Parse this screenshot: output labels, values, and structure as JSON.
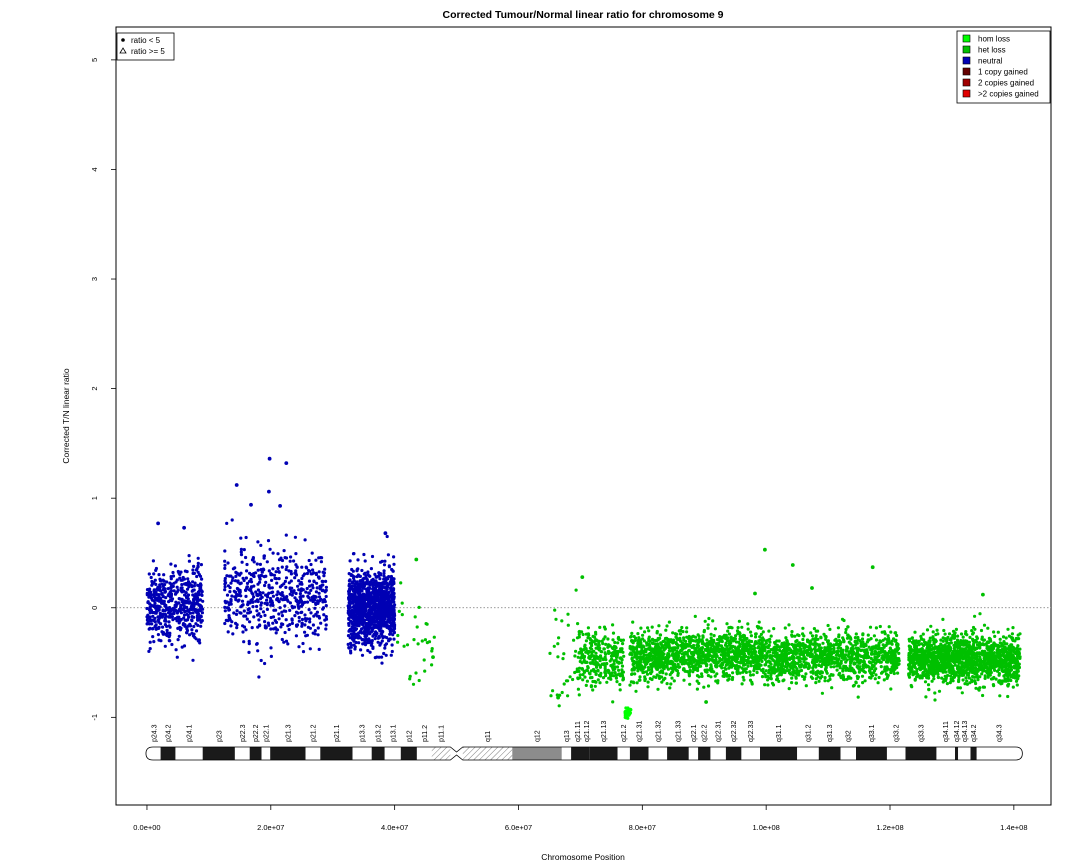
{
  "chart_data": {
    "type": "scatter",
    "title": "Corrected Tumour/Normal linear ratio for chromosome  9",
    "xlabel": "Chromosome Position",
    "ylabel": "Corrected T/N linear ratio",
    "xlim": [
      -5000000,
      146000000
    ],
    "ylim": [
      -1.8,
      5.3
    ],
    "x_ticks": [
      0,
      20000000,
      40000000,
      60000000,
      80000000,
      100000000,
      120000000,
      140000000
    ],
    "x_tick_labels": [
      "0.0e+00",
      "2.0e+07",
      "4.0e+07",
      "6.0e+07",
      "8.0e+07",
      "1.0e+08",
      "1.2e+08",
      "1.4e+08"
    ],
    "y_ticks": [
      -1,
      0,
      1,
      2,
      3,
      4,
      5
    ],
    "y_tick_labels": [
      "-1",
      "0",
      "1",
      "2",
      "3",
      "4",
      "5"
    ],
    "reference_line": 0,
    "shape_legend": {
      "position": "top-left",
      "entries": [
        {
          "symbol": "dot",
          "label": "ratio < 5"
        },
        {
          "symbol": "triangle",
          "label": "ratio >= 5"
        }
      ]
    },
    "state_legend": {
      "position": "top-right",
      "entries": [
        {
          "label": "hom loss",
          "color": "#00ff00"
        },
        {
          "label": "het loss",
          "color": "#00c000"
        },
        {
          "label": "neutral",
          "color": "#0000b4"
        },
        {
          "label": "1 copy gained",
          "color": "#640000"
        },
        {
          "label": "2 copies gained",
          "color": "#a00000"
        },
        {
          "label": ">2 copies gained",
          "color": "#e00000"
        }
      ]
    },
    "series": [
      {
        "name": "neutral",
        "color": "#0000b4",
        "segments": [
          {
            "start": 0,
            "end": 9000000,
            "mean": 0.03,
            "sd": 0.17,
            "n": 520
          },
          {
            "start": 12500000,
            "end": 29000000,
            "mean": 0.12,
            "sd": 0.2,
            "n": 560
          },
          {
            "start": 32500000,
            "end": 40000000,
            "mean": 0.0,
            "sd": 0.17,
            "n": 1150
          }
        ]
      },
      {
        "name": "het loss",
        "color": "#00c000",
        "segments": [
          {
            "start": 40000000,
            "end": 46500000,
            "mean": -0.25,
            "sd": 0.2,
            "n": 30
          },
          {
            "start": 65000000,
            "end": 69500000,
            "mean": -0.5,
            "sd": 0.2,
            "n": 30
          },
          {
            "start": 69500000,
            "end": 77000000,
            "mean": -0.46,
            "sd": 0.13,
            "n": 300
          },
          {
            "start": 78000000,
            "end": 100000000,
            "mean": -0.43,
            "sd": 0.11,
            "n": 1300
          },
          {
            "start": 100000000,
            "end": 121500000,
            "mean": -0.45,
            "sd": 0.11,
            "n": 1100
          },
          {
            "start": 123000000,
            "end": 141000000,
            "mean": -0.47,
            "sd": 0.11,
            "n": 1500
          }
        ]
      },
      {
        "name": "hom loss",
        "color": "#00ff00",
        "segments": [
          {
            "start": 77200000,
            "end": 78200000,
            "mean": -0.96,
            "sd": 0.03,
            "n": 40
          }
        ]
      }
    ],
    "outliers": [
      {
        "x": 19800000,
        "y": 1.36,
        "state": "neutral"
      },
      {
        "x": 22500000,
        "y": 1.32,
        "state": "neutral"
      },
      {
        "x": 14500000,
        "y": 1.12,
        "state": "neutral"
      },
      {
        "x": 19700000,
        "y": 1.06,
        "state": "neutral"
      },
      {
        "x": 16800000,
        "y": 0.94,
        "state": "neutral"
      },
      {
        "x": 21500000,
        "y": 0.93,
        "state": "neutral"
      },
      {
        "x": 1800000,
        "y": 0.77,
        "state": "neutral"
      },
      {
        "x": 6000000,
        "y": 0.73,
        "state": "neutral"
      },
      {
        "x": 38500000,
        "y": 0.68,
        "state": "neutral"
      },
      {
        "x": 99800000,
        "y": 0.53,
        "state": "het loss"
      },
      {
        "x": 104300000,
        "y": 0.39,
        "state": "het loss"
      },
      {
        "x": 117200000,
        "y": 0.37,
        "state": "het loss"
      },
      {
        "x": 70300000,
        "y": 0.28,
        "state": "het loss"
      },
      {
        "x": 107400000,
        "y": 0.18,
        "state": "het loss"
      },
      {
        "x": 98200000,
        "y": 0.13,
        "state": "het loss"
      },
      {
        "x": 135000000,
        "y": 0.12,
        "state": "het loss"
      },
      {
        "x": 43500000,
        "y": 0.44,
        "state": "het loss"
      },
      {
        "x": 46200000,
        "y": -0.45,
        "state": "het loss"
      },
      {
        "x": 66400000,
        "y": -0.82,
        "state": "het loss"
      },
      {
        "x": 90300000,
        "y": -0.86,
        "state": "het loss"
      }
    ],
    "cytobands": {
      "p_end": 49000000,
      "q_start": 51000000,
      "chrom_end": 141213431,
      "bands": [
        {
          "label": "p24.3",
          "start": 0,
          "end": 2200000,
          "stain": "white"
        },
        {
          "label": "p24.2",
          "start": 2200000,
          "end": 4600000,
          "stain": "black"
        },
        {
          "label": "p24.1",
          "start": 4600000,
          "end": 9000000,
          "stain": "white"
        },
        {
          "label": "p23",
          "start": 9000000,
          "end": 14200000,
          "stain": "black"
        },
        {
          "label": "p22.3",
          "start": 14200000,
          "end": 16600000,
          "stain": "white"
        },
        {
          "label": "p22.2",
          "start": 16600000,
          "end": 18500000,
          "stain": "black"
        },
        {
          "label": "p22.1",
          "start": 18500000,
          "end": 19900000,
          "stain": "white"
        },
        {
          "label": "p21.3",
          "start": 19900000,
          "end": 25600000,
          "stain": "black"
        },
        {
          "label": "p21.2",
          "start": 25600000,
          "end": 28000000,
          "stain": "white"
        },
        {
          "label": "p21.1",
          "start": 28000000,
          "end": 33200000,
          "stain": "black"
        },
        {
          "label": "p13.3",
          "start": 33200000,
          "end": 36300000,
          "stain": "white"
        },
        {
          "label": "p13.2",
          "start": 36300000,
          "end": 38400000,
          "stain": "black"
        },
        {
          "label": "p13.1",
          "start": 38400000,
          "end": 41000000,
          "stain": "white"
        },
        {
          "label": "p12",
          "start": 41000000,
          "end": 43600000,
          "stain": "black"
        },
        {
          "label": "p11.2",
          "start": 43600000,
          "end": 46000000,
          "stain": "white"
        },
        {
          "label": "p11.1",
          "start": 46000000,
          "end": 49000000,
          "stain": "hatch"
        },
        {
          "label": "q11",
          "start": 51000000,
          "end": 59000000,
          "stain": "hatch"
        },
        {
          "label": "q12",
          "start": 59000000,
          "end": 67000000,
          "stain": "gray"
        },
        {
          "label": "q13",
          "start": 67000000,
          "end": 68500000,
          "stain": "white"
        },
        {
          "label": "q21.11",
          "start": 68500000,
          "end": 70500000,
          "stain": "black"
        },
        {
          "label": "q21.12",
          "start": 70500000,
          "end": 71500000,
          "stain": "black"
        },
        {
          "label": "q21.13",
          "start": 71500000,
          "end": 76000000,
          "stain": "black"
        },
        {
          "label": "q21.2",
          "start": 76000000,
          "end": 78000000,
          "stain": "white"
        },
        {
          "label": "q21.31",
          "start": 78000000,
          "end": 81000000,
          "stain": "black"
        },
        {
          "label": "q21.32",
          "start": 81000000,
          "end": 84000000,
          "stain": "white"
        },
        {
          "label": "q21.33",
          "start": 84000000,
          "end": 87500000,
          "stain": "black"
        },
        {
          "label": "q22.1",
          "start": 87500000,
          "end": 89000000,
          "stain": "white"
        },
        {
          "label": "q22.2",
          "start": 89000000,
          "end": 91000000,
          "stain": "black"
        },
        {
          "label": "q22.31",
          "start": 91000000,
          "end": 93500000,
          "stain": "white"
        },
        {
          "label": "q22.32",
          "start": 93500000,
          "end": 96000000,
          "stain": "black"
        },
        {
          "label": "q22.33",
          "start": 96000000,
          "end": 99000000,
          "stain": "white"
        },
        {
          "label": "q31.1",
          "start": 99000000,
          "end": 105000000,
          "stain": "black"
        },
        {
          "label": "q31.2",
          "start": 105000000,
          "end": 108500000,
          "stain": "white"
        },
        {
          "label": "q31.3",
          "start": 108500000,
          "end": 112000000,
          "stain": "black"
        },
        {
          "label": "q32",
          "start": 112000000,
          "end": 114500000,
          "stain": "white"
        },
        {
          "label": "q33.1",
          "start": 114500000,
          "end": 119500000,
          "stain": "black"
        },
        {
          "label": "q33.2",
          "start": 119500000,
          "end": 122500000,
          "stain": "white"
        },
        {
          "label": "q33.3",
          "start": 122500000,
          "end": 127500000,
          "stain": "black"
        },
        {
          "label": "q34.11",
          "start": 127500000,
          "end": 130500000,
          "stain": "white"
        },
        {
          "label": "q34.12",
          "start": 130500000,
          "end": 131000000,
          "stain": "black"
        },
        {
          "label": "q34.13",
          "start": 131000000,
          "end": 133000000,
          "stain": "white"
        },
        {
          "label": "q34.2",
          "start": 133000000,
          "end": 134000000,
          "stain": "black"
        },
        {
          "label": "q34.3",
          "start": 134000000,
          "end": 141213431,
          "stain": "white"
        }
      ]
    }
  }
}
